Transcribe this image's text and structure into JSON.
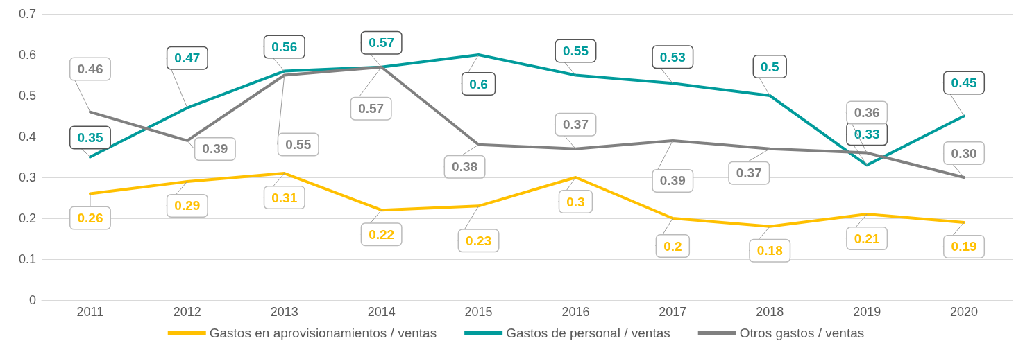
{
  "chart_data": {
    "type": "line",
    "categories": [
      "2011",
      "2012",
      "2013",
      "2014",
      "2015",
      "2016",
      "2017",
      "2018",
      "2019",
      "2020"
    ],
    "series": [
      {
        "name": "Gastos en aprovisionamientos / ventas",
        "color": "#ffc000",
        "values": [
          0.26,
          0.29,
          0.31,
          0.22,
          0.23,
          0.3,
          0.2,
          0.18,
          0.21,
          0.19
        ],
        "value_labels": [
          "0.26",
          "0.29",
          "0.31",
          "0.22",
          "0.23",
          "0.3",
          "0.2",
          "0.18",
          "0.21",
          "0.19"
        ]
      },
      {
        "name": "Gastos de personal / ventas",
        "color": "#009b9b",
        "values": [
          0.35,
          0.47,
          0.56,
          0.57,
          0.6,
          0.55,
          0.53,
          0.5,
          0.33,
          0.45
        ],
        "value_labels": [
          "0.35",
          "0.47",
          "0.56",
          "0.57",
          "0.6",
          "0.55",
          "0.53",
          "0.5",
          "0.33",
          "0.45"
        ]
      },
      {
        "name": "Otros gastos / ventas",
        "color": "#808080",
        "values": [
          0.46,
          0.39,
          0.55,
          0.57,
          0.38,
          0.37,
          0.39,
          0.37,
          0.36,
          0.3
        ],
        "value_labels": [
          "0.46",
          "0.39",
          "0.55",
          "0.57",
          "0.38",
          "0.37",
          "0.39",
          "0.37",
          "0.36",
          "0.30"
        ]
      }
    ],
    "ylim": [
      0,
      0.7
    ],
    "yticks": [
      0,
      0.1,
      0.2,
      0.3,
      0.4,
      0.5,
      0.6,
      0.7
    ],
    "grid": "y",
    "legend": "bottom",
    "marker": "none",
    "line_style": "solid"
  }
}
